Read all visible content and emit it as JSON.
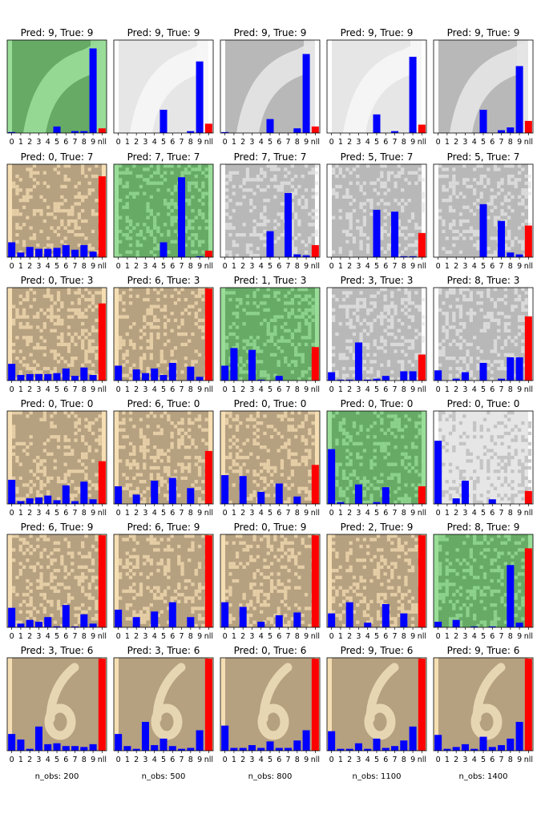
{
  "figure": {
    "colors": {
      "bar": "#0000ff",
      "nll_bar": "#ff0000",
      "pred_correct_bg": "#66aa66",
      "pred_correct_light": "#99dd99",
      "pred_wrong_bg": "#b5a080",
      "pred_wrong_light": "#f5deb3",
      "neutral_bg": "#b8b8b8",
      "neutral_light": "#e6e6e6",
      "stroke_light_on_dark": "#ececec",
      "digit_stroke_tan": "#ead9b5"
    },
    "column_labels": [
      "n_obs: 200",
      "n_obs: 500",
      "n_obs: 800",
      "n_obs: 1100",
      "n_obs: 1400"
    ],
    "x_tick_labels": [
      "0",
      "1",
      "2",
      "3",
      "4",
      "5",
      "6",
      "7",
      "8",
      "9",
      "nll"
    ]
  },
  "chart_data": {
    "type": "bar",
    "layout": "grid 6 rows x 5 columns of small-multiple bar charts over image thumbnails",
    "categories": [
      "0",
      "1",
      "2",
      "3",
      "4",
      "5",
      "6",
      "7",
      "8",
      "9",
      "nll"
    ],
    "ylim": [
      0,
      1
    ],
    "panels": [
      {
        "title": "Pred: 9, True: 9",
        "bg": "green",
        "pattern": "shoe",
        "values": [
          0.01,
          0,
          0,
          0,
          0,
          0.07,
          0,
          0.02,
          0.02,
          0.91,
          0.05
        ]
      },
      {
        "title": "Pred: 9, True: 9",
        "bg": "gray-light",
        "pattern": "shoe",
        "values": [
          0,
          0,
          0,
          0,
          0,
          0.25,
          0,
          0,
          0.02,
          0.77,
          0.1
        ]
      },
      {
        "title": "Pred: 9, True: 9",
        "bg": "gray",
        "pattern": "shoe",
        "values": [
          0.01,
          0,
          0,
          0,
          0,
          0.15,
          0,
          0,
          0.05,
          0.85,
          0.07
        ]
      },
      {
        "title": "Pred: 9, True: 9",
        "bg": "gray-light",
        "pattern": "shoe",
        "values": [
          0,
          0,
          0,
          0,
          0,
          0.2,
          0,
          0.02,
          0,
          0.82,
          0.09
        ]
      },
      {
        "title": "Pred: 9, True: 9",
        "bg": "gray",
        "pattern": "shoe",
        "values": [
          0,
          0,
          0,
          0,
          0,
          0.25,
          0,
          0.03,
          0.06,
          0.72,
          0.13
        ]
      },
      {
        "title": "Pred: 0, True: 7",
        "bg": "tan",
        "pattern": "noise",
        "values": [
          0.16,
          0.05,
          0.11,
          0.09,
          0.09,
          0.1,
          0.13,
          0.08,
          0.13,
          0.06,
          0.87
        ]
      },
      {
        "title": "Pred: 7, True: 7",
        "bg": "green",
        "pattern": "noise",
        "values": [
          0,
          0,
          0,
          0,
          0,
          0.16,
          0,
          0.86,
          0,
          0.01,
          0.07
        ]
      },
      {
        "title": "Pred: 7, True: 7",
        "bg": "gray",
        "pattern": "noise",
        "values": [
          0,
          0,
          0,
          0,
          0,
          0.28,
          0,
          0.69,
          0.03,
          0.02,
          0.13
        ]
      },
      {
        "title": "Pred: 5, True: 7",
        "bg": "gray",
        "pattern": "noise",
        "values": [
          0,
          0,
          0,
          0,
          0,
          0.51,
          0,
          0.49,
          0.01,
          0.01,
          0.26
        ]
      },
      {
        "title": "Pred: 5, True: 7",
        "bg": "gray",
        "pattern": "noise",
        "values": [
          0,
          0,
          0,
          0,
          0,
          0.57,
          0,
          0.39,
          0.05,
          0.03,
          0.34
        ]
      },
      {
        "title": "Pred: 0, True: 3",
        "bg": "tan",
        "pattern": "noise",
        "values": [
          0.18,
          0.06,
          0.07,
          0.07,
          0.07,
          0.08,
          0.13,
          0.05,
          0.14,
          0.06,
          0.83
        ]
      },
      {
        "title": "Pred: 6, True: 3",
        "bg": "tan",
        "pattern": "noise",
        "values": [
          0.16,
          0,
          0.12,
          0.08,
          0.13,
          0.06,
          0.19,
          0,
          0.15,
          0.04,
          0.99
        ]
      },
      {
        "title": "Pred: 1, True: 3",
        "bg": "green",
        "pattern": "noise",
        "values": [
          0.16,
          0.35,
          0,
          0.33,
          0.01,
          0,
          0.05,
          0,
          0,
          0,
          0.36
        ]
      },
      {
        "title": "Pred: 3, True: 3",
        "bg": "gray",
        "pattern": "noise",
        "values": [
          0.09,
          0.01,
          0.01,
          0.41,
          0.01,
          0.02,
          0.05,
          0,
          0.1,
          0.1,
          0.28
        ]
      },
      {
        "title": "Pred: 8, True: 3",
        "bg": "gray",
        "pattern": "noise",
        "values": [
          0.11,
          0,
          0.02,
          0.09,
          0,
          0.19,
          0,
          0.02,
          0.25,
          0.25,
          0.69
        ]
      },
      {
        "title": "Pred: 0, True: 0",
        "bg": "tan",
        "pattern": "noise",
        "values": [
          0.26,
          0.03,
          0.06,
          0.07,
          0.09,
          0.04,
          0.2,
          0.03,
          0.24,
          0.05,
          0.46
        ]
      },
      {
        "title": "Pred: 6, True: 0",
        "bg": "tan",
        "pattern": "noise",
        "values": [
          0.19,
          0,
          0.1,
          0,
          0.25,
          0,
          0.28,
          0,
          0.17,
          0,
          0.57
        ]
      },
      {
        "title": "Pred: 0, True: 0",
        "bg": "tan",
        "pattern": "noise",
        "values": [
          0.31,
          0,
          0.3,
          0,
          0.13,
          0,
          0.22,
          0,
          0.08,
          0,
          0.42
        ]
      },
      {
        "title": "Pred: 0, True: 0",
        "bg": "green",
        "pattern": "noise",
        "values": [
          0.59,
          0.02,
          0,
          0.21,
          0,
          0.02,
          0.18,
          0,
          0,
          0,
          0.19
        ]
      },
      {
        "title": "Pred: 0, True: 0",
        "bg": "gray-light",
        "pattern": "noise",
        "values": [
          0.68,
          0,
          0.06,
          0.25,
          0,
          0,
          0.05,
          0,
          0,
          0,
          0.14
        ]
      },
      {
        "title": "Pred: 6, True: 9",
        "bg": "tan",
        "pattern": "noise",
        "values": [
          0.21,
          0.04,
          0.08,
          0.06,
          0.11,
          0.01,
          0.24,
          0.01,
          0.14,
          0.04,
          0.99
        ]
      },
      {
        "title": "Pred: 6, True: 9",
        "bg": "tan",
        "pattern": "noise",
        "values": [
          0.19,
          0,
          0.11,
          0,
          0.17,
          0,
          0.27,
          0,
          0.11,
          0,
          0.99
        ]
      },
      {
        "title": "Pred: 0, True: 9",
        "bg": "tan",
        "pattern": "noise",
        "values": [
          0.27,
          0,
          0.22,
          0,
          0.06,
          0,
          0.13,
          0,
          0.16,
          0,
          0.99
        ]
      },
      {
        "title": "Pred: 2, True: 9",
        "bg": "tan",
        "pattern": "noise",
        "values": [
          0.15,
          0,
          0.27,
          0,
          0.05,
          0,
          0.25,
          0,
          0.15,
          0,
          0.99
        ]
      },
      {
        "title": "Pred: 8, True: 9",
        "bg": "green",
        "pattern": "noise",
        "values": [
          0.06,
          0,
          0.08,
          0,
          0.01,
          0,
          0.01,
          0,
          0.67,
          0.05,
          0.85
        ]
      },
      {
        "title": "Pred: 3, True: 6",
        "bg": "tan",
        "pattern": "digit6",
        "values": [
          0.18,
          0.12,
          0.02,
          0.26,
          0.07,
          0.08,
          0.05,
          0.05,
          0.04,
          0.07,
          0.99
        ]
      },
      {
        "title": "Pred: 3, True: 6",
        "bg": "tan",
        "pattern": "digit6",
        "values": [
          0.18,
          0.05,
          0.02,
          0.31,
          0.06,
          0.13,
          0.05,
          0.02,
          0.03,
          0.22,
          0.99
        ]
      },
      {
        "title": "Pred: 0, True: 6",
        "bg": "tan",
        "pattern": "digit6",
        "values": [
          0.27,
          0.03,
          0.03,
          0.06,
          0.03,
          0.1,
          0.03,
          0.03,
          0.11,
          0.22,
          0.99
        ]
      },
      {
        "title": "Pred: 9, True: 6",
        "bg": "tan",
        "pattern": "digit6",
        "values": [
          0.21,
          0.02,
          0.02,
          0.08,
          0.02,
          0.13,
          0.03,
          0.05,
          0.11,
          0.26,
          0.99
        ]
      },
      {
        "title": "Pred: 9, True: 6",
        "bg": "tan",
        "pattern": "digit6",
        "values": [
          0.17,
          0.02,
          0.04,
          0.07,
          0.02,
          0.15,
          0.04,
          0.06,
          0.13,
          0.31,
          0.99
        ]
      }
    ]
  }
}
